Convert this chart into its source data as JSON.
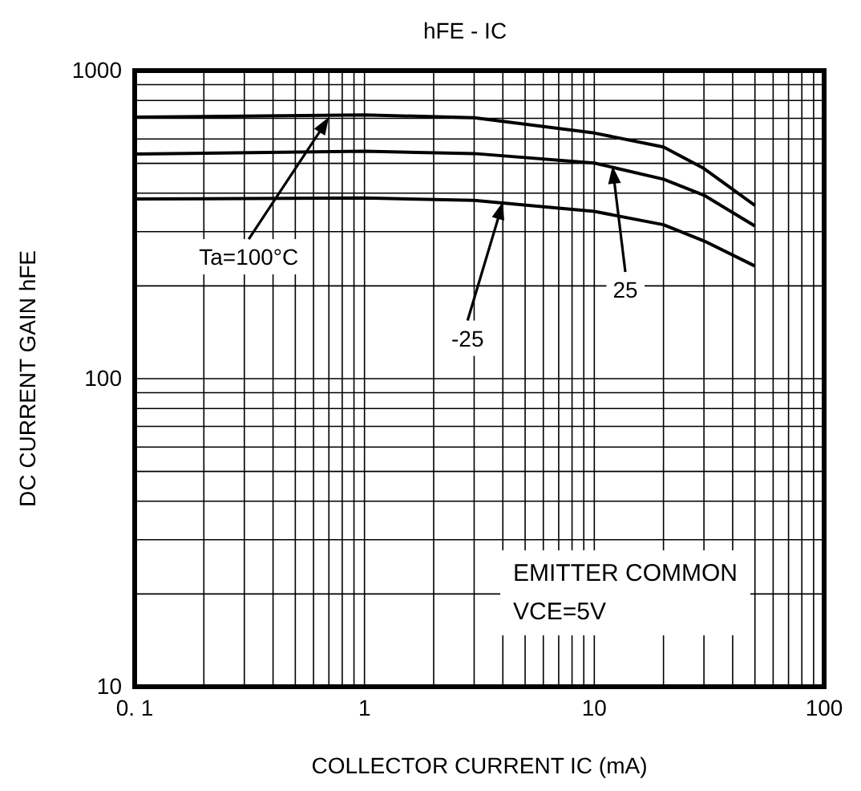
{
  "chart_data": {
    "type": "line",
    "title": "hFE - IC",
    "xlabel": "COLLECTOR CURRENT IC (mA)",
    "ylabel": "DC CURRENT GAIN hFE",
    "log": "xy",
    "grid": true,
    "marker": "none",
    "line_style": "solid",
    "x": [
      0.1,
      1,
      3,
      10,
      20,
      30,
      50
    ],
    "xlim": [
      0.1,
      100
    ],
    "ylim": [
      10,
      1000
    ],
    "xticks": [
      {
        "value": 0.1,
        "label": "0. 1"
      },
      {
        "value": 0.2,
        "label": null
      },
      {
        "value": 0.3,
        "label": null
      },
      {
        "value": 0.4,
        "label": null
      },
      {
        "value": 0.5,
        "label": null
      },
      {
        "value": 0.6,
        "label": null
      },
      {
        "value": 0.7,
        "label": null
      },
      {
        "value": 0.8,
        "label": null
      },
      {
        "value": 0.9,
        "label": null
      },
      1,
      {
        "value": 2,
        "label": null
      },
      {
        "value": 3,
        "label": null
      },
      {
        "value": 4,
        "label": null
      },
      {
        "value": 5,
        "label": null
      },
      {
        "value": 6,
        "label": null
      },
      {
        "value": 7,
        "label": null
      },
      {
        "value": 8,
        "label": null
      },
      {
        "value": 9,
        "label": null
      },
      10,
      {
        "value": 20,
        "label": null
      },
      {
        "value": 30,
        "label": null
      },
      {
        "value": 40,
        "label": null
      },
      {
        "value": 50,
        "label": null
      },
      {
        "value": 60,
        "label": null
      },
      {
        "value": 70,
        "label": null
      },
      {
        "value": 80,
        "label": null
      },
      {
        "value": 90,
        "label": null
      },
      100
    ],
    "yticks": [
      10,
      {
        "value": 20,
        "label": null
      },
      {
        "value": 30,
        "label": null
      },
      {
        "value": 40,
        "label": null
      },
      {
        "value": 50,
        "label": null
      },
      {
        "value": 60,
        "label": null
      },
      {
        "value": 70,
        "label": null
      },
      {
        "value": 80,
        "label": null
      },
      {
        "value": 90,
        "label": null
      },
      100,
      {
        "value": 200,
        "label": null
      },
      {
        "value": 300,
        "label": null
      },
      {
        "value": 400,
        "label": null
      },
      {
        "value": 500,
        "label": null
      },
      {
        "value": 600,
        "label": null
      },
      {
        "value": 700,
        "label": null
      },
      {
        "value": 800,
        "label": null
      },
      {
        "value": 900,
        "label": null
      },
      1000
    ],
    "series": [
      {
        "color": "#000000",
        "values": [
          706,
          718,
          703,
          627,
          565,
          481,
          365
        ]
      },
      {
        "color": "#000000",
        "values": [
          536,
          547,
          538,
          501,
          444,
          394,
          313
        ]
      },
      {
        "color": "#000000",
        "values": [
          383,
          386,
          379,
          349,
          316,
          280,
          232
        ]
      }
    ],
    "annotations": [
      {
        "text": "Ta=100°C",
        "x": 0.7,
        "y": 706
      },
      {
        "text": "25",
        "x": 12,
        "y": 490
      },
      {
        "text": "-25",
        "x": 4,
        "y": 375
      },
      "EMITTER COMMON",
      "VCE=5V"
    ]
  }
}
